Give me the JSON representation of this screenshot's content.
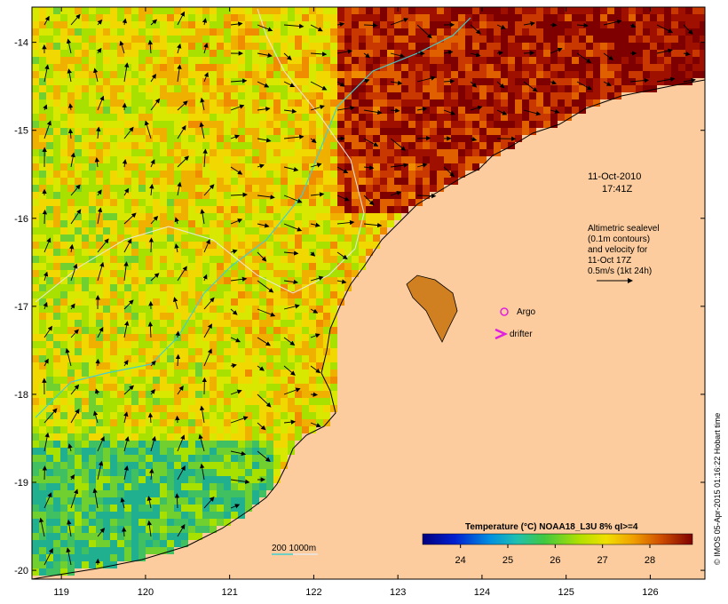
{
  "map": {
    "x_ticks": [
      "119",
      "120",
      "121",
      "122",
      "123",
      "124",
      "125",
      "126"
    ],
    "y_ticks": [
      "-14",
      "-15",
      "-16",
      "-17",
      "-18",
      "-19",
      "-20"
    ],
    "lon_range": [
      118.65,
      126.65
    ],
    "lat_range": [
      -20.1,
      -13.6
    ]
  },
  "annotations": {
    "date_line1": "11-Oct-2010",
    "date_line2": "17:41Z",
    "altimetry_line1": "Altimetric sealevel",
    "altimetry_line2": "(0.1m contours)",
    "altimetry_line3": "and velocity for",
    "altimetry_line4": "11-Oct 17Z",
    "altimetry_line5": "0.5m/s (1kt 24h)",
    "argo_label": "Argo",
    "drifter_label": "drifter",
    "depth_label": "200  1000m"
  },
  "colorbar": {
    "title": "Temperature (°C) NOAA18_L3U 8% qI>=4",
    "ticks": [
      "24",
      "25",
      "26",
      "27",
      "28"
    ],
    "range": [
      23.2,
      28.9
    ]
  },
  "credit": "© IMOS 05-Apr-2015 01:16:22 Hobart time",
  "colors": {
    "land": "#fdcc9e",
    "argo": "#e020e0",
    "drifter": "#e020e0",
    "contour_200": "#40d0d0",
    "contour_1000": "#e0e0e0"
  }
}
